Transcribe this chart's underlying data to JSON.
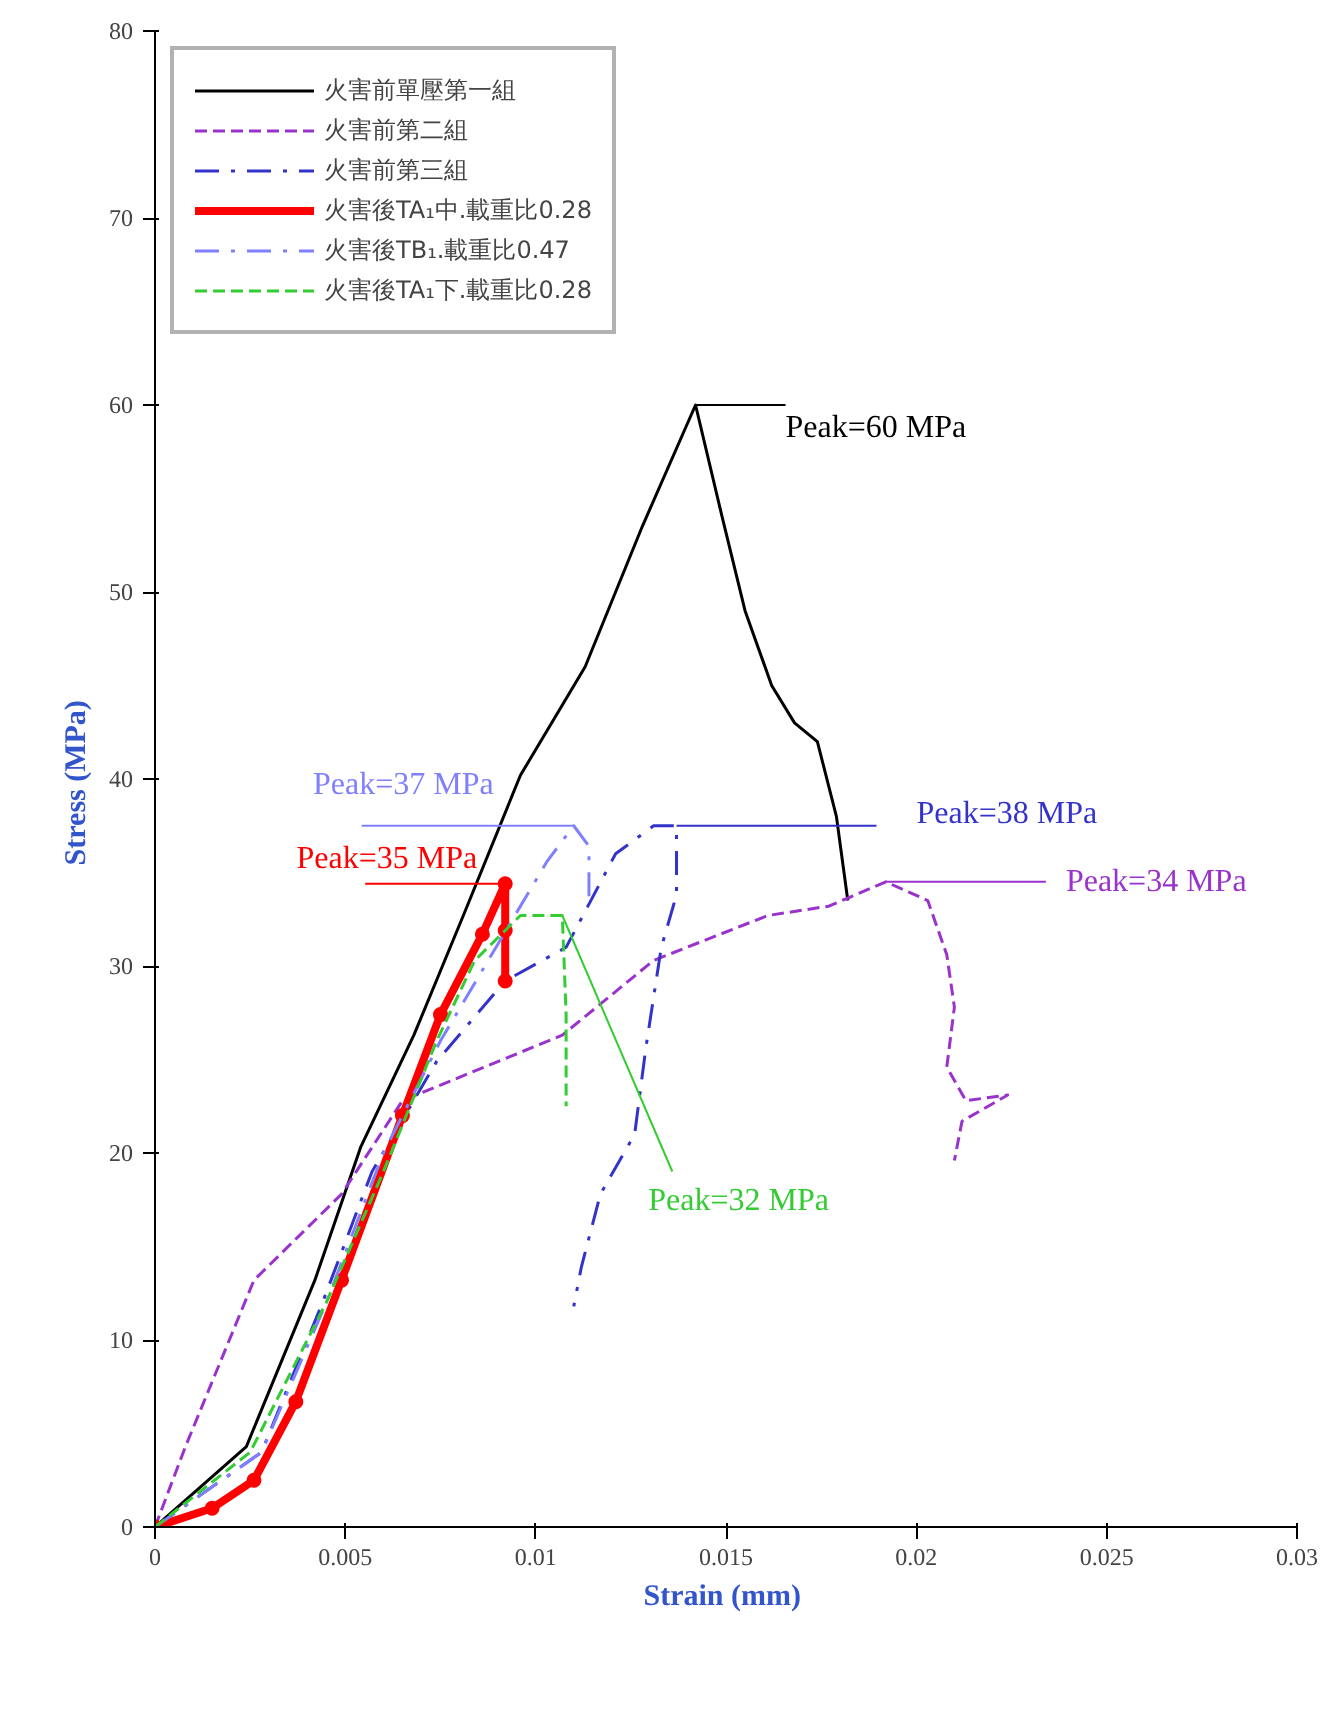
{
  "chart_data": {
    "type": "line",
    "xlabel": "Strain  (mm)",
    "ylabel": "Stress  (MPa)",
    "xlim": [
      0,
      0.03
    ],
    "ylim": [
      0,
      80
    ],
    "xticks": [
      0,
      0.005,
      0.01,
      0.015,
      0.02,
      0.025,
      0.03
    ],
    "yticks": [
      0,
      10,
      20,
      30,
      40,
      50,
      60,
      70,
      80
    ],
    "grid": false,
    "legend": "top left",
    "series": [
      {
        "name": "火害前單壓第一組",
        "color": "#000000",
        "line_style": "solid",
        "x": [
          0,
          0.0024,
          0.0042,
          0.0054,
          0.0068,
          0.0081,
          0.0096,
          0.0113,
          0.0128,
          0.0142,
          0.0149,
          0.0155,
          0.0162,
          0.0168,
          0.0174,
          0.0179,
          0.0182
        ],
        "values": [
          0,
          4.3,
          13.2,
          20.3,
          26.3,
          32.7,
          40.2,
          46,
          53.5,
          60,
          54,
          49,
          45,
          43,
          42,
          38,
          33.5
        ]
      },
      {
        "name": "火害前第二組",
        "color": "#9933cc",
        "line_style": "dashed",
        "x": [
          0,
          0.0008,
          0.0026,
          0.0049,
          0.0065,
          0.0107,
          0.0131,
          0.0161,
          0.0177,
          0.0192,
          0.0203,
          0.0208,
          0.021,
          0.0208,
          0.0213,
          0.0224,
          0.0212,
          0.021
        ],
        "values": [
          0,
          4.3,
          13.2,
          17.8,
          22.8,
          26.3,
          30.3,
          32.7,
          33.2,
          34.5,
          33.5,
          30.6,
          27.8,
          24.6,
          22.8,
          23.1,
          21.7,
          19.6
        ]
      },
      {
        "name": "火害前第三組",
        "color": "#3333cc",
        "line_style": "dashdot",
        "x": [
          0,
          0.0028,
          0.0044,
          0.0057,
          0.0074,
          0.0092,
          0.0108,
          0.0121,
          0.0131,
          0.0137,
          0.0137,
          0.0137,
          0.0133,
          0.0129,
          0.0126,
          0.0117,
          0.0112,
          0.011
        ],
        "values": [
          0,
          4,
          12,
          19,
          24.9,
          29.2,
          31,
          36,
          37.5,
          37.5,
          36,
          33.8,
          31,
          25.7,
          21,
          17.8,
          13.9,
          11.8
        ]
      },
      {
        "name": "火害後TA₁中.載重比0.28",
        "color": "#ff0000",
        "line_style": "solid",
        "marker": "circle",
        "x": [
          0,
          0.0015,
          0.0026,
          0.0037,
          0.0049,
          0.0065,
          0.0075,
          0.0086,
          0.0092,
          0.0092,
          0.0092
        ],
        "values": [
          0,
          1,
          2.5,
          6.7,
          13.2,
          22,
          27.4,
          31.7,
          34.4,
          31.9,
          29.2
        ]
      },
      {
        "name": "火害後TB₁.載重比0.47",
        "color": "#8080ff",
        "line_style": "dashdot",
        "x": [
          0,
          0.0028,
          0.0045,
          0.006,
          0.0075,
          0.0103,
          0.011,
          0.0114,
          0.0114
        ],
        "values": [
          0,
          4,
          12,
          20,
          26,
          35.6,
          37.5,
          36.4,
          33.5
        ]
      },
      {
        "name": "火害後TA₁下.載重比0.28",
        "color": "#33cc33",
        "line_style": "dashed",
        "x": [
          0,
          0.0025,
          0.0045,
          0.006,
          0.0074,
          0.0084,
          0.0096,
          0.0107,
          0.0108,
          0.0108
        ],
        "values": [
          0,
          4,
          12,
          19,
          26,
          30.3,
          32.7,
          32.7,
          27.4,
          22.5
        ]
      }
    ],
    "annotations": [
      {
        "text": "Peak=60  MPa",
        "x": 0.0142,
        "y": 60
      },
      {
        "text": "Peak=34  MPa",
        "x": 0.0192,
        "y": 34.5
      },
      {
        "text": "Peak=38  MPa",
        "x": 0.0137,
        "y": 37.5
      },
      {
        "text": "Peak=35  MPa",
        "x": 0.0092,
        "y": 34.4
      },
      {
        "text": "Peak=37  MPa",
        "x": 0.011,
        "y": 37.5
      },
      {
        "text": "Peak=32  MPa",
        "x": 0.0107,
        "y": 32.7
      }
    ]
  }
}
